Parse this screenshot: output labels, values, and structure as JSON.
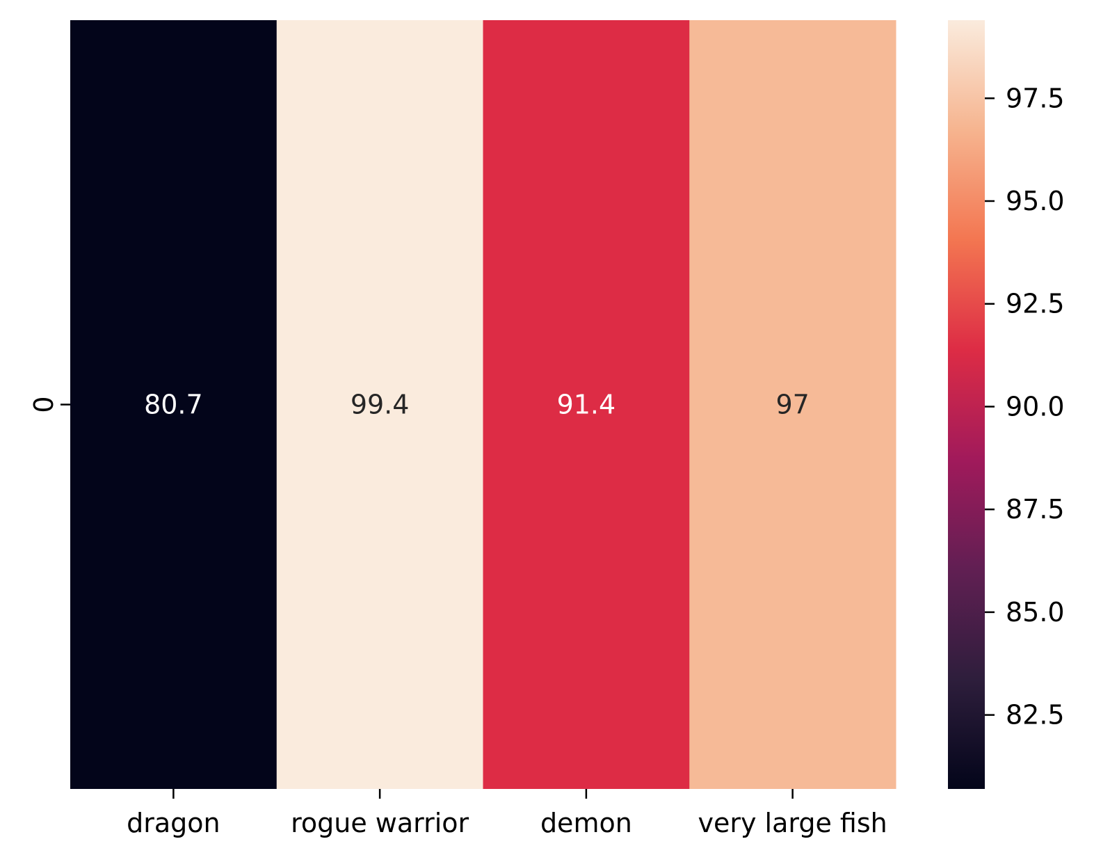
{
  "chart_data": {
    "type": "heatmap",
    "title": "",
    "xlabel": "",
    "ylabel": "",
    "x_categories": [
      "dragon",
      "rogue warrior",
      "demon",
      "very large fish"
    ],
    "y_categories": [
      "0"
    ],
    "values": [
      [
        80.7,
        99.4,
        91.4,
        97
      ]
    ],
    "cell_labels": [
      [
        "80.7",
        "99.4",
        "91.4",
        "97"
      ]
    ],
    "colorbar": {
      "range": [
        80.7,
        99.4
      ],
      "ticks": [
        82.5,
        85.0,
        87.5,
        90.0,
        92.5,
        95.0,
        97.5
      ],
      "tick_labels": [
        "82.5",
        "85.0",
        "87.5",
        "90.0",
        "92.5",
        "95.0",
        "97.5"
      ],
      "colormap": "rocket",
      "colormap_stops": [
        "#03051a",
        "#2e1e3c",
        "#611f53",
        "#a11a5b",
        "#dd2c45",
        "#f37651",
        "#f6b48f",
        "#faebdd"
      ]
    },
    "grid": false,
    "legend": "colorbar-right"
  }
}
